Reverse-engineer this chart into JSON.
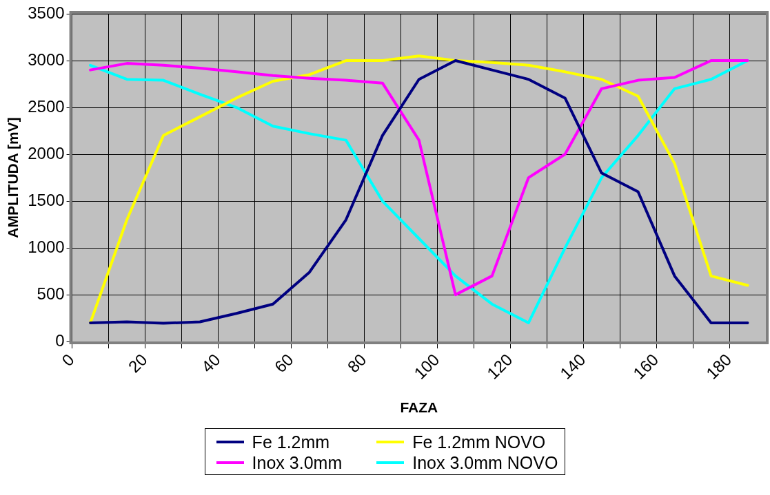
{
  "chart_data": {
    "type": "line",
    "xlabel": "FAZA",
    "ylabel": "AMPLITUDA [mV]",
    "x": [
      5,
      15,
      25,
      35,
      45,
      55,
      65,
      75,
      85,
      95,
      105,
      115,
      125,
      135,
      145,
      155,
      165,
      175,
      185
    ],
    "series": [
      {
        "name": "Fe 1.2mm",
        "color": "#000080",
        "values": [
          200,
          210,
          195,
          210,
          300,
          400,
          740,
          1300,
          2200,
          2800,
          3000,
          2900,
          2800,
          2600,
          1800,
          1600,
          700,
          200,
          200
        ]
      },
      {
        "name": "Inox 3.0mm",
        "color": "#ff00ff",
        "values": [
          2900,
          2970,
          2950,
          2920,
          2880,
          2840,
          2810,
          2790,
          2760,
          2150,
          500,
          700,
          1750,
          2000,
          2700,
          2790,
          2820,
          3000,
          3000
        ]
      },
      {
        "name": "Fe 1.2mm NOVO",
        "color": "#ffff00",
        "values": [
          200,
          1300,
          2200,
          2400,
          2600,
          2780,
          2850,
          3000,
          3000,
          3050,
          3000,
          2980,
          2950,
          2880,
          2800,
          2620,
          1900,
          700,
          600
        ]
      },
      {
        "name": "Inox 3.0mm NOVO",
        "color": "#00ffff",
        "values": [
          2950,
          2800,
          2790,
          2640,
          2500,
          2300,
          2220,
          2150,
          1500,
          1100,
          700,
          400,
          200,
          1000,
          1750,
          2200,
          2700,
          2800,
          3000
        ]
      }
    ],
    "xlim": [
      0,
      190
    ],
    "xticks": [
      0,
      {
        "value": 10,
        "label": null
      },
      20,
      {
        "value": 30,
        "label": null
      },
      40,
      {
        "value": 50,
        "label": null
      },
      60,
      {
        "value": 70,
        "label": null
      },
      80,
      {
        "value": 90,
        "label": null
      },
      100,
      {
        "value": 110,
        "label": null
      },
      120,
      {
        "value": 130,
        "label": null
      },
      140,
      {
        "value": 150,
        "label": null
      },
      160,
      {
        "value": 170,
        "label": null
      },
      180
    ],
    "ylim": [
      0,
      3500
    ],
    "yticks": [
      0,
      500,
      1000,
      1500,
      2000,
      2500,
      3000,
      3500
    ],
    "grid": true,
    "legend": "bottom",
    "marker": "none",
    "line_style": "solid"
  }
}
